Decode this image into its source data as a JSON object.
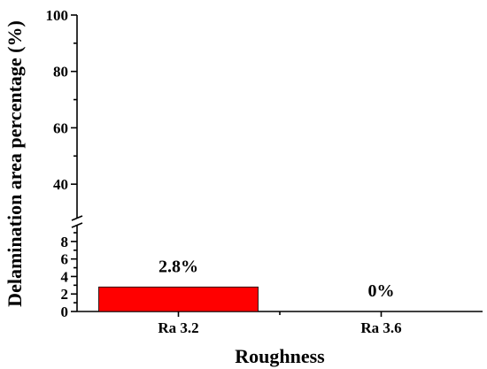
{
  "chart_data": {
    "type": "bar",
    "title": "",
    "xlabel": "Roughness",
    "ylabel": "Delamination area percentage (%)",
    "categories": [
      "Ra 3.2",
      "Ra 3.6"
    ],
    "values": [
      2.8,
      0
    ],
    "data_labels": [
      "2.8%",
      "0%"
    ],
    "bar_color": "#ff0000",
    "y_axis_break": true,
    "lower_segment": {
      "ylim": [
        0,
        9
      ],
      "ticks": [
        0,
        2,
        4,
        6,
        8
      ],
      "minor_ticks": [
        1,
        3,
        5,
        7,
        9
      ]
    },
    "upper_segment": {
      "ylim": [
        30,
        100
      ],
      "ticks": [
        40,
        60,
        80,
        100
      ],
      "minor_ticks": [
        50,
        70,
        90
      ]
    },
    "grid": false,
    "legend": "none"
  }
}
